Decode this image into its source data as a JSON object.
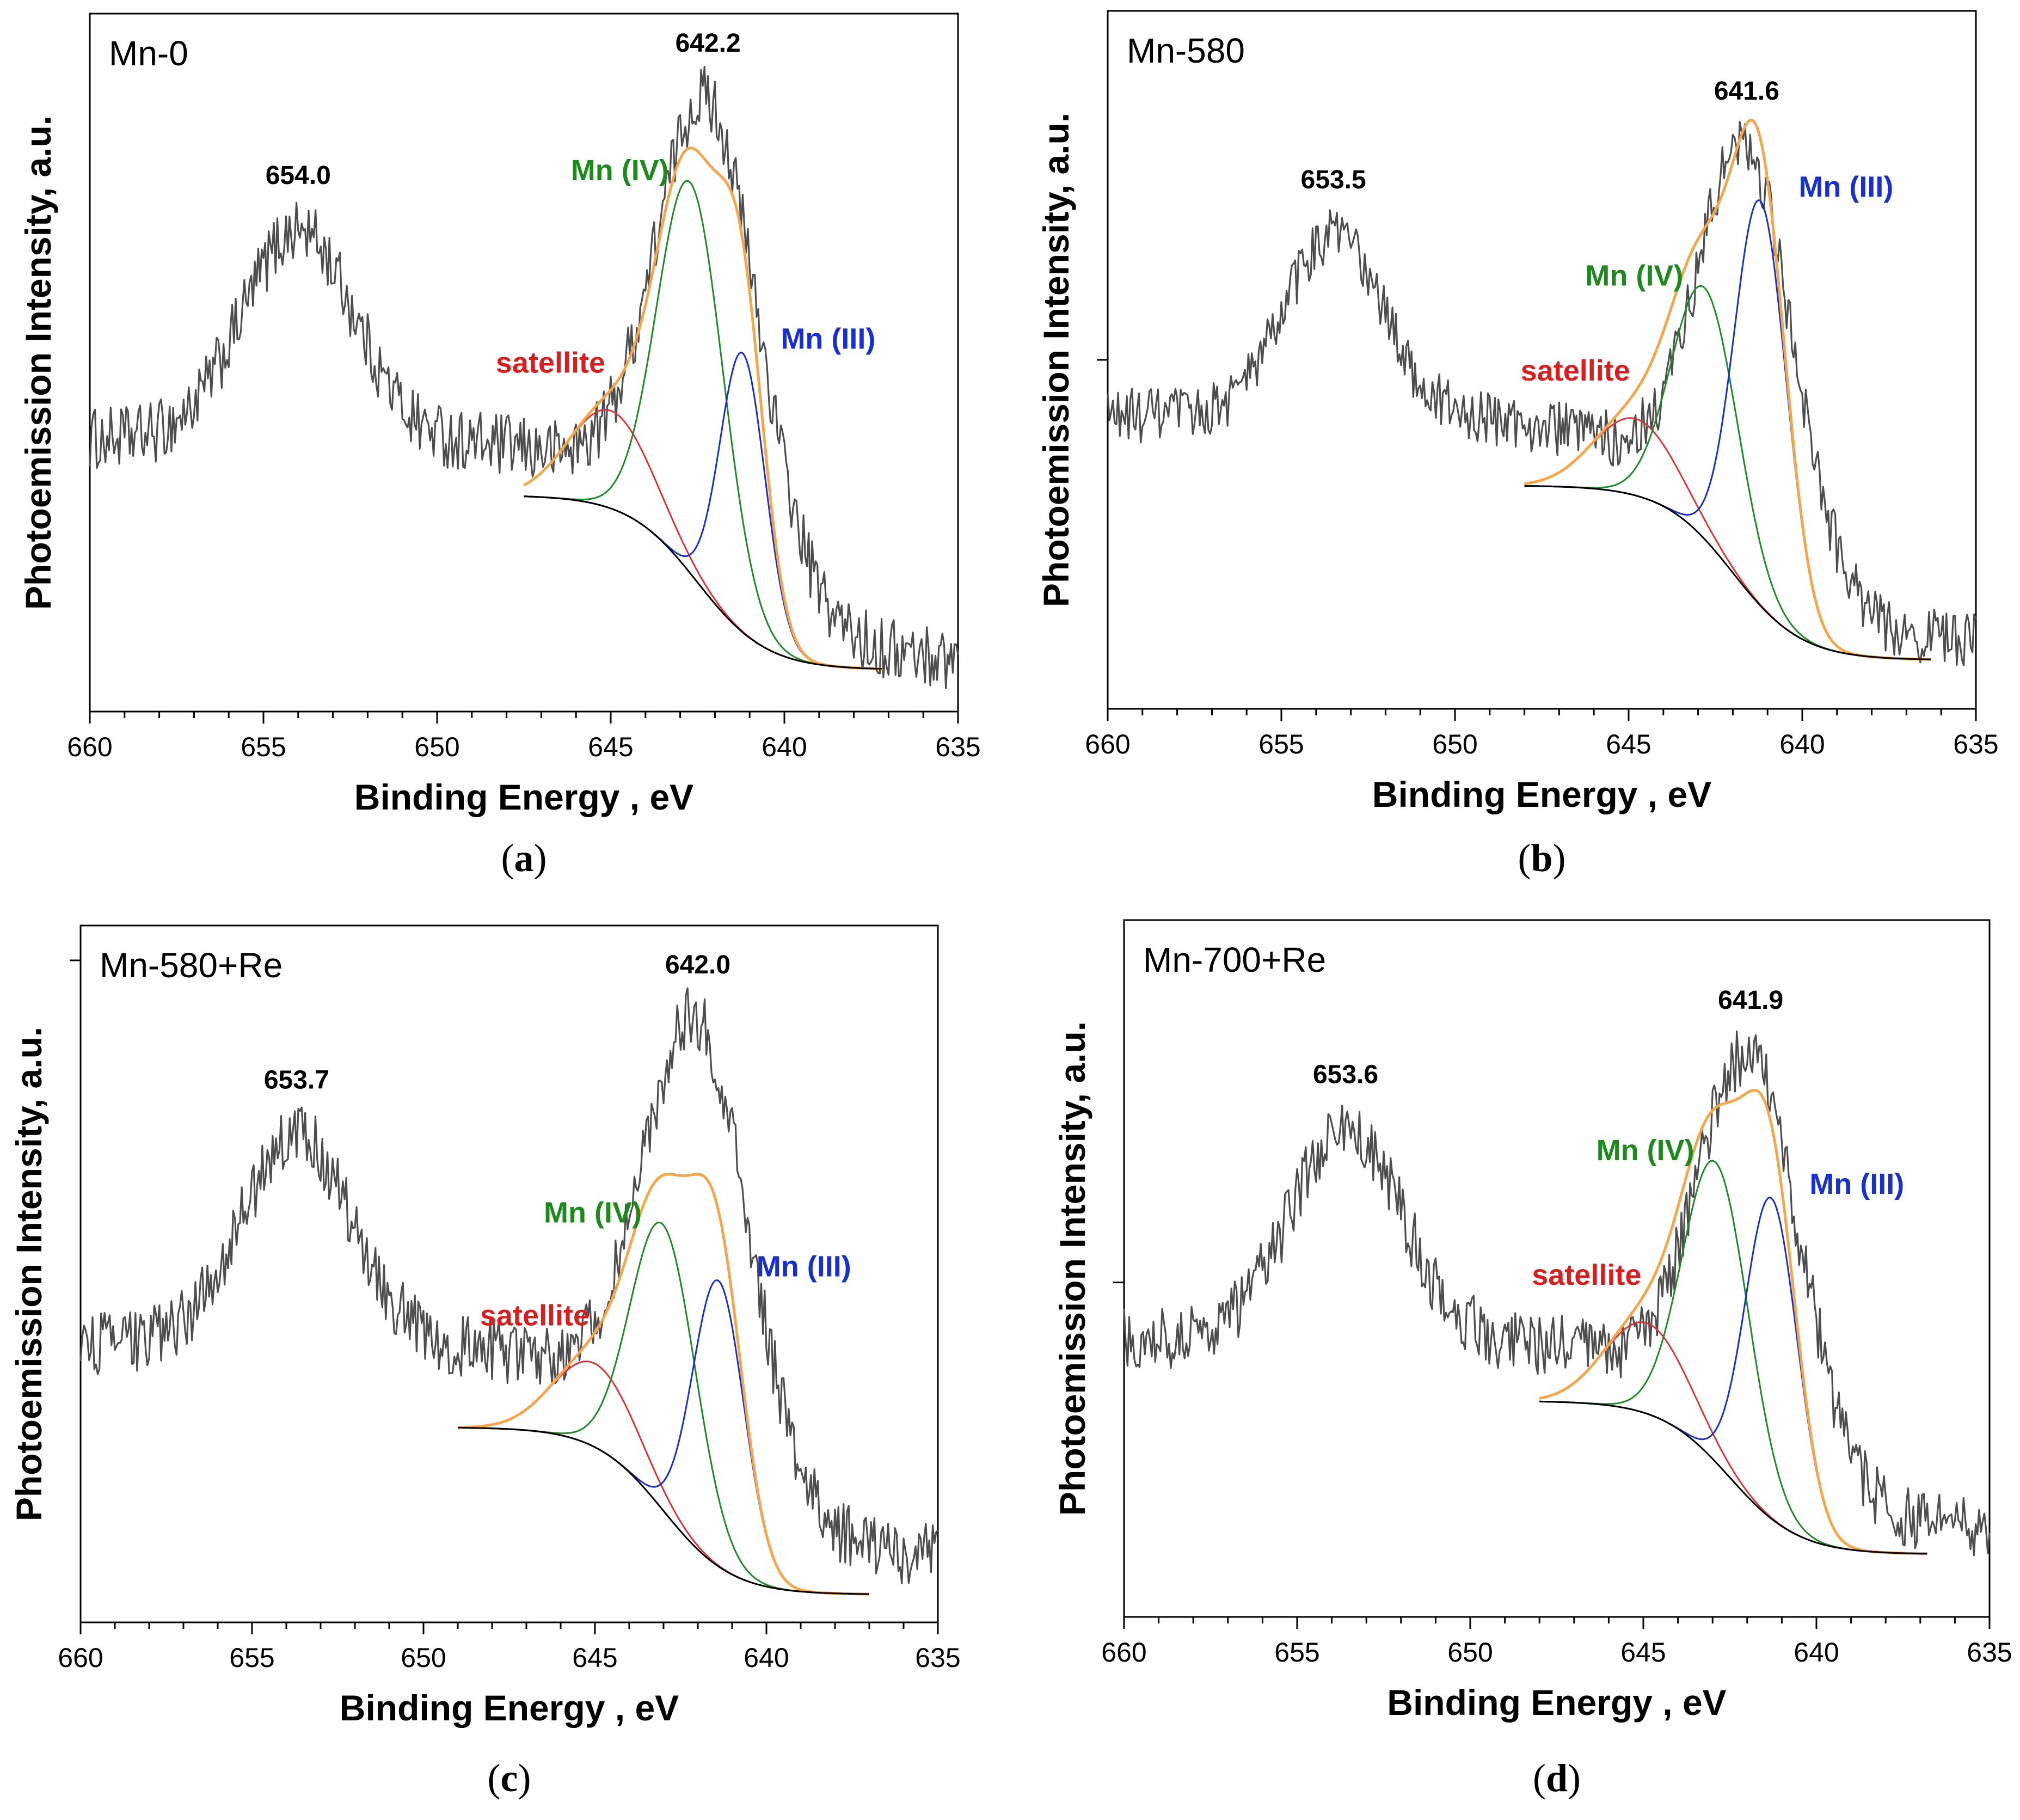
{
  "colors": {
    "raw": "#4d4d4d",
    "envelope": "#f5a54a",
    "background": "#000000",
    "satellite": "#d9343a",
    "mn4": "#1f8a2a",
    "mn3": "#1c2fc4",
    "satellite_label": "#d62020",
    "mn4_label": "#1e8a1e",
    "mn3_label": "#1a2fcf"
  },
  "chart_data": [
    {
      "type": "line",
      "panel": "a",
      "caption": "a",
      "sample": "Mn-0",
      "xlabel": "Binding Energy , eV",
      "ylabel": "Photoemission Intensity, a.u.",
      "xlim": [
        660,
        635
      ],
      "xticks": [
        660,
        655,
        650,
        645,
        640,
        635
      ],
      "ylim": [
        0,
        1
      ],
      "grid": false,
      "y_tick": null,
      "peaks": [
        {
          "x": 654.0,
          "label": "654.0"
        },
        {
          "x": 642.2,
          "label": "642.2"
        }
      ],
      "component_labels": {
        "satellite": "satellite",
        "mn4": "Mn (IV)",
        "mn3": "Mn (III)"
      },
      "raw": {
        "xrange": [
          660,
          635
        ],
        "baseline": 0.39,
        "baseline_right": 0.07,
        "noise": 0.045,
        "gaussians": [
          {
            "c": 654.0,
            "a": 0.3,
            "w": 1.6
          },
          {
            "c": 642.2,
            "a": 0.64,
            "w": 1.45
          }
        ]
      },
      "background_curve": {
        "xrange": [
          647.5,
          640.0
        ],
        "left": 0.31,
        "right": 0.06,
        "center": 642.5,
        "steepness": 1.0
      },
      "fit_range": [
        647.5,
        637.2
      ],
      "components": [
        {
          "id": "satellite",
          "center": 645.0,
          "amp": 0.14,
          "width": 1.2
        },
        {
          "id": "mn4",
          "center": 642.7,
          "amp": 0.56,
          "width": 0.95
        },
        {
          "id": "mn3",
          "center": 641.2,
          "amp": 0.4,
          "width": 0.65
        }
      ]
    },
    {
      "type": "line",
      "panel": "b",
      "caption": "b",
      "sample": "Mn-580",
      "xlabel": "Binding Energy , eV",
      "ylabel": "Photoemission Intensity, a.u.",
      "xlim": [
        660,
        635
      ],
      "xticks": [
        660,
        655,
        650,
        645,
        640,
        635
      ],
      "ylim": [
        0,
        1
      ],
      "grid": false,
      "y_tick": 0.5,
      "peaks": [
        {
          "x": 653.5,
          "label": "653.5"
        },
        {
          "x": 641.6,
          "label": "641.6"
        }
      ],
      "component_labels": {
        "satellite": "satellite",
        "mn4": "Mn (IV)",
        "mn3": "Mn (III)"
      },
      "raw": {
        "xrange": [
          660,
          635
        ],
        "baseline": 0.42,
        "baseline_right": 0.09,
        "noise": 0.04,
        "gaussians": [
          {
            "c": 653.5,
            "a": 0.26,
            "w": 1.4
          },
          {
            "c": 641.6,
            "a": 0.57,
            "w": 1.35
          }
        ]
      },
      "background_curve": {
        "xrange": [
          648.0,
          637.0
        ],
        "left": 0.32,
        "right": 0.07,
        "center": 642.0,
        "steepness": 1.0
      },
      "fit_range": [
        648.0,
        636.3
      ],
      "components": [
        {
          "id": "satellite",
          "center": 644.8,
          "amp": 0.11,
          "width": 1.2
        },
        {
          "id": "mn4",
          "center": 642.8,
          "amp": 0.36,
          "width": 0.95
        },
        {
          "id": "mn3",
          "center": 641.2,
          "amp": 0.58,
          "width": 0.75
        }
      ]
    },
    {
      "type": "line",
      "panel": "c",
      "caption": "c",
      "sample": "Mn-580+Re",
      "xlabel": "Binding Energy , eV",
      "ylabel": "Photoemission Intensity, a.u.",
      "xlim": [
        660,
        635
      ],
      "xticks": [
        660,
        655,
        650,
        645,
        640,
        635
      ],
      "ylim": [
        0,
        1
      ],
      "grid": false,
      "y_tick": 0.95,
      "peaks": [
        {
          "x": 653.7,
          "label": "653.7"
        },
        {
          "x": 642.0,
          "label": "642.0"
        }
      ],
      "component_labels": {
        "satellite": "satellite",
        "mn4": "Mn (IV)",
        "mn3": "Mn (III)"
      },
      "raw": {
        "xrange": [
          660,
          635
        ],
        "baseline": 0.4,
        "baseline_right": 0.09,
        "noise": 0.045,
        "gaussians": [
          {
            "c": 653.7,
            "a": 0.3,
            "w": 1.6
          },
          {
            "c": 642.0,
            "a": 0.62,
            "w": 1.5
          }
        ]
      },
      "background_curve": {
        "xrange": [
          649.0,
          638.0
        ],
        "left": 0.28,
        "right": 0.04,
        "center": 643.0,
        "steepness": 1.0
      },
      "fit_range": [
        649.0,
        637.0
      ],
      "components": [
        {
          "id": "satellite",
          "center": 645.0,
          "amp": 0.12,
          "width": 1.2
        },
        {
          "id": "mn4",
          "center": 643.0,
          "amp": 0.41,
          "width": 0.95
        },
        {
          "id": "mn3",
          "center": 641.4,
          "amp": 0.41,
          "width": 0.75
        }
      ]
    },
    {
      "type": "line",
      "panel": "d",
      "caption": "d",
      "sample": "Mn-700+Re",
      "xlabel": "Binding Energy , eV",
      "ylabel": "Photoemission Intensity, a.u.",
      "xlim": [
        660,
        635
      ],
      "xticks": [
        660,
        655,
        650,
        645,
        640,
        635
      ],
      "ylim": [
        0,
        1
      ],
      "grid": false,
      "y_tick": 0.48,
      "peaks": [
        {
          "x": 653.6,
          "label": "653.6"
        },
        {
          "x": 641.9,
          "label": "641.9"
        }
      ],
      "component_labels": {
        "satellite": "satellite",
        "mn4": "Mn (IV)",
        "mn3": "Mn (III)"
      },
      "raw": {
        "xrange": [
          660,
          635
        ],
        "baseline": 0.4,
        "baseline_right": 0.12,
        "noise": 0.045,
        "gaussians": [
          {
            "c": 653.6,
            "a": 0.3,
            "w": 1.6
          },
          {
            "c": 641.9,
            "a": 0.55,
            "w": 1.45
          }
        ]
      },
      "background_curve": {
        "xrange": [
          648.0,
          638.0
        ],
        "left": 0.31,
        "right": 0.09,
        "center": 642.5,
        "steepness": 1.0
      },
      "fit_range": [
        648.0,
        636.8
      ],
      "components": [
        {
          "id": "satellite",
          "center": 644.9,
          "amp": 0.13,
          "width": 1.2
        },
        {
          "id": "mn4",
          "center": 642.9,
          "amp": 0.43,
          "width": 0.95
        },
        {
          "id": "mn3",
          "center": 641.3,
          "amp": 0.46,
          "width": 0.75
        }
      ]
    }
  ]
}
